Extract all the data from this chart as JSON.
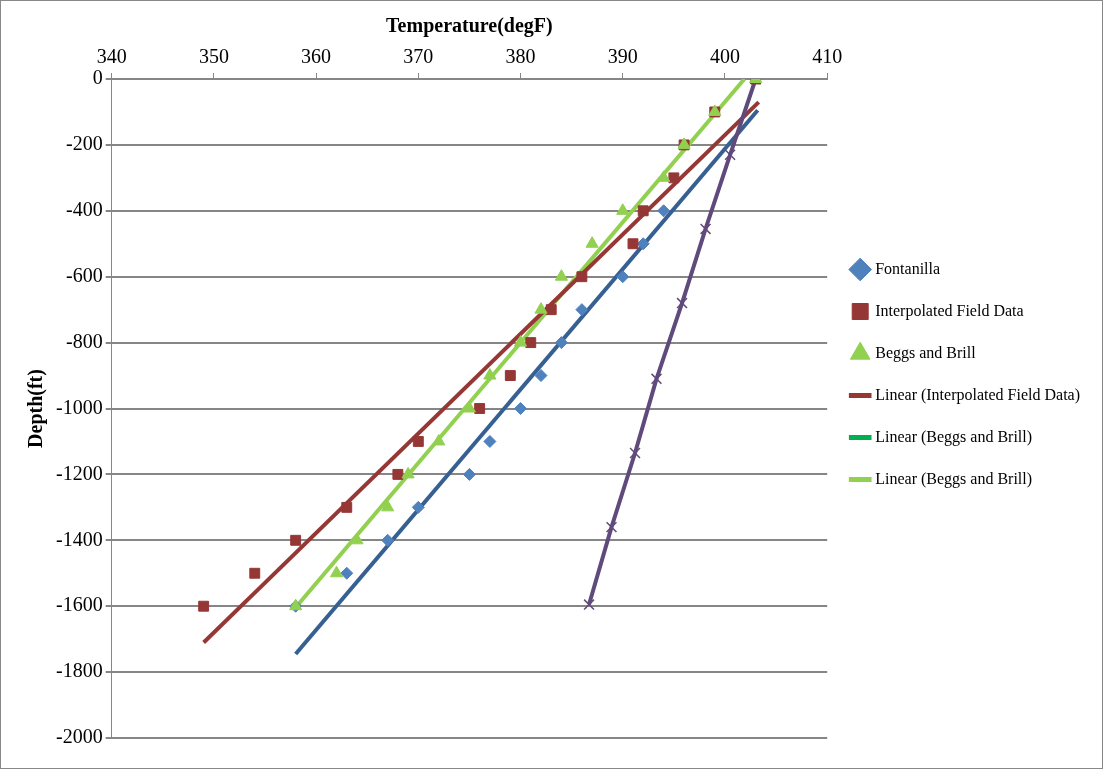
{
  "chart_data": {
    "type": "scatter",
    "xlabel": "Temperature(degF)",
    "ylabel": "Depth(ft)",
    "xlim": [
      340,
      410
    ],
    "xticks": [
      340,
      350,
      360,
      370,
      380,
      390,
      400,
      410
    ],
    "ylim": [
      -2000,
      0
    ],
    "yticks": [
      -2000,
      -1800,
      -1600,
      -1400,
      -1200,
      -1000,
      -800,
      -600,
      -400,
      -200,
      0
    ],
    "grid": "y",
    "legend": "right",
    "series": [
      {
        "name": "Fontanilla",
        "type": "scatter",
        "marker": "diamond",
        "color": "#4f81bd",
        "x": [
          394,
          392,
          390,
          386,
          384,
          382,
          380,
          377,
          375,
          370,
          367,
          363,
          358
        ],
        "values": [
          -400,
          -500,
          -600,
          -700,
          -800,
          -900,
          -1000,
          -1100,
          -1200,
          -1300,
          -1400,
          -1500,
          -1600
        ]
      },
      {
        "name": "Interpolated Field Data",
        "type": "scatter",
        "marker": "square",
        "color": "#953735",
        "x": [
          403,
          399,
          396,
          395,
          392,
          391,
          386,
          383,
          381,
          379,
          376,
          370,
          368,
          363,
          358,
          354,
          349
        ],
        "values": [
          0,
          -100,
          -200,
          -300,
          -400,
          -500,
          -600,
          -700,
          -800,
          -900,
          -1000,
          -1100,
          -1200,
          -1300,
          -1400,
          -1500,
          -1600
        ]
      },
      {
        "name": "Beggs and Brill",
        "type": "scatter",
        "marker": "triangle",
        "color": "#92d050",
        "x": [
          403,
          399,
          396,
          394,
          390,
          387,
          384,
          382,
          380,
          377,
          375,
          372,
          369,
          367,
          364,
          362,
          358
        ],
        "values": [
          0,
          -100,
          -200,
          -300,
          -400,
          -500,
          -600,
          -700,
          -800,
          -900,
          -1000,
          -1100,
          -1200,
          -1300,
          -1400,
          -1500,
          -1600
        ]
      },
      {
        "type": "line",
        "marker": "cross",
        "color": "#604a7b",
        "x": [
          403,
          400.5,
          398.1,
          395.8,
          393.3,
          391.2,
          388.9,
          386.7
        ],
        "values": [
          0,
          -230,
          -455,
          -680,
          -910,
          -1135,
          -1360,
          -1595
        ]
      },
      {
        "type": "line",
        "marker": "none",
        "color": "#376092",
        "x": [
          358,
          403.2
        ],
        "values": [
          -1745,
          -95
        ]
      },
      {
        "name": "Linear (Interpolated Field Data)",
        "type": "line",
        "marker": "none",
        "color": "#953735",
        "x": [
          349,
          403.3
        ],
        "values": [
          -1710,
          -70
        ]
      },
      {
        "name": "Linear (Beggs and Brill)",
        "type": "line",
        "marker": "none",
        "color": "#00b050"
      },
      {
        "name": "Linear (Beggs and Brill)",
        "type": "line",
        "marker": "none",
        "color": "#92d050",
        "x": [
          358.1,
          401.9
        ],
        "values": [
          -1600,
          0
        ]
      }
    ]
  }
}
